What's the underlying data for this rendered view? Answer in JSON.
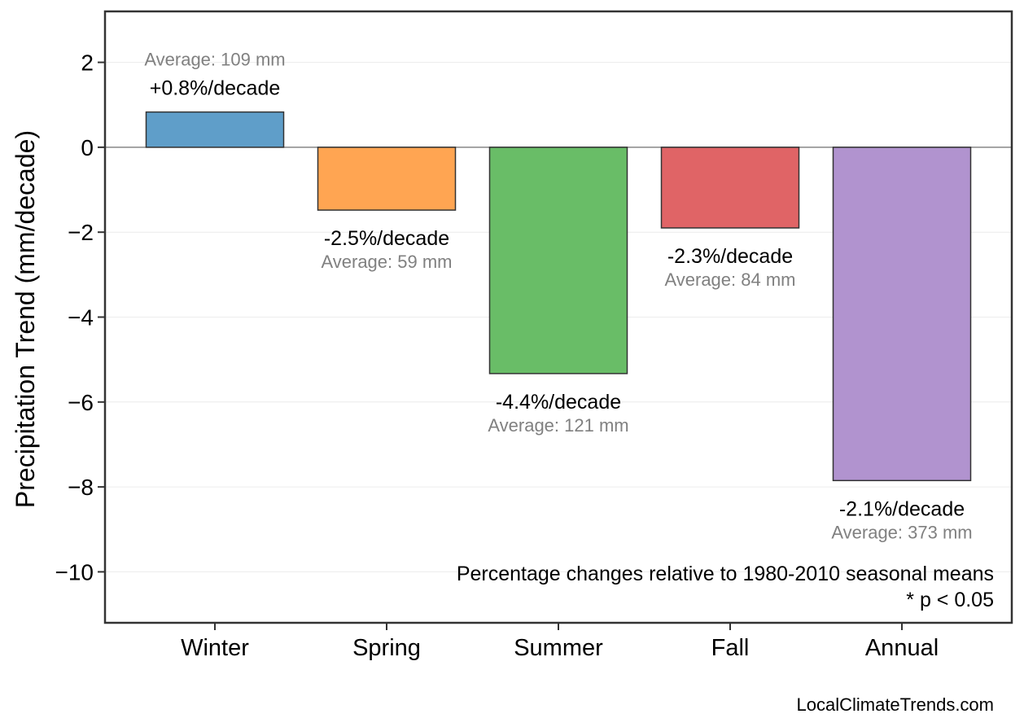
{
  "chart_data": {
    "type": "bar",
    "categories": [
      "Winter",
      "Spring",
      "Summer",
      "Fall",
      "Annual"
    ],
    "values": [
      0.83,
      -1.48,
      -5.33,
      -1.9,
      -7.85
    ],
    "colors": [
      "#5f9ec9",
      "#ffa552",
      "#69bd67",
      "#e06466",
      "#b193cf"
    ],
    "percent_labels": [
      "+0.8%/decade",
      "-2.5%/decade",
      "-4.4%/decade",
      "-2.3%/decade",
      "-2.1%/decade"
    ],
    "average_labels": [
      "Average: 109 mm",
      "Average: 59 mm",
      "Average: 121 mm",
      "Average: 84 mm",
      "Average: 373 mm"
    ],
    "ylabel": "Precipitation Trend (mm/decade)",
    "xlabel": "",
    "ylim": [
      -11.2,
      3.2
    ],
    "yticks": [
      2,
      0,
      -2,
      -4,
      -6,
      -8,
      -10
    ],
    "ytick_labels": [
      "2",
      "0",
      "−2",
      "−4",
      "−6",
      "−8",
      "−10"
    ],
    "grid": true,
    "notes": [
      "Percentage changes relative to 1980-2010 seasonal means",
      "* p < 0.05"
    ],
    "credit": "LocalClimateTrends.com"
  }
}
